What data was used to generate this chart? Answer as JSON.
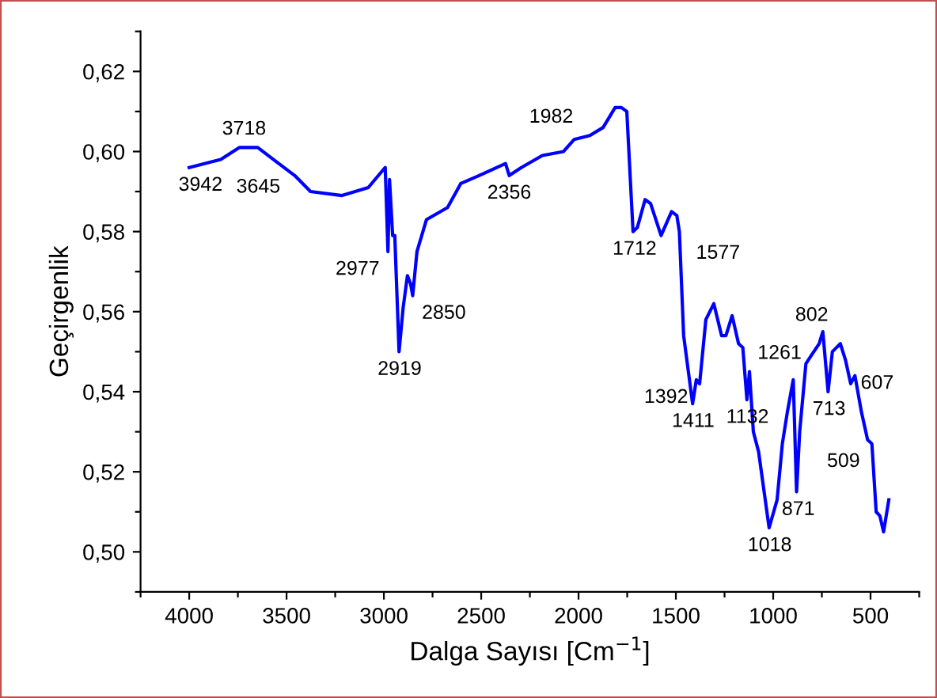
{
  "chart_data": {
    "type": "line",
    "xlabel": "Dalga Sayısı [Cm$^{−1}$]",
    "ylabel": "Geçirgenlik",
    "xlim": [
      4250,
      250
    ],
    "ylim": [
      0.49,
      0.63
    ],
    "xticks": [
      {
        "value": 4250,
        "label": null
      },
      4000,
      {
        "value": 3750,
        "label": null
      },
      3500,
      {
        "value": 3250,
        "label": null
      },
      3000,
      {
        "value": 2750,
        "label": null
      },
      2500,
      {
        "value": 2250,
        "label": null
      },
      2000,
      {
        "value": 1750,
        "label": null
      },
      1500,
      {
        "value": 1250,
        "label": null
      },
      1000,
      {
        "value": 750,
        "label": null
      },
      500,
      {
        "value": 250,
        "label": null
      }
    ],
    "yticks": [
      {
        "value": 0.49,
        "label": null
      },
      {
        "value": 0.5,
        "label": "0,50"
      },
      {
        "value": 0.51,
        "label": null
      },
      {
        "value": 0.52,
        "label": "0,52"
      },
      {
        "value": 0.53,
        "label": null
      },
      {
        "value": 0.54,
        "label": "0,54"
      },
      {
        "value": 0.55,
        "label": null
      },
      {
        "value": 0.56,
        "label": "0,56"
      },
      {
        "value": 0.57,
        "label": null
      },
      {
        "value": 0.58,
        "label": "0,58"
      },
      {
        "value": 0.59,
        "label": null
      },
      {
        "value": 0.6,
        "label": "0,60"
      },
      {
        "value": 0.61,
        "label": null
      },
      {
        "value": 0.62,
        "label": "0,62"
      },
      {
        "value": 0.63,
        "label": null
      }
    ],
    "grid": false,
    "marker": "none",
    "line_style": "solid",
    "series": [
      {
        "color": "#0000ff",
        "x": [
          4000,
          3838,
          3743,
          3648,
          3567,
          3458,
          3377,
          3215,
          3080,
          3011,
          2993,
          2979,
          2971,
          2955,
          2944,
          2922,
          2901,
          2879,
          2863,
          2852,
          2830,
          2781,
          2673,
          2605,
          2511,
          2375,
          2356,
          2294,
          2186,
          2077,
          2023,
          1942,
          1874,
          1812,
          1780,
          1752,
          1720,
          1698,
          1658,
          1630,
          1576,
          1522,
          1495,
          1482,
          1460,
          1414,
          1395,
          1378,
          1346,
          1305,
          1265,
          1243,
          1211,
          1178,
          1156,
          1135,
          1122,
          1102,
          1075,
          1021,
          980,
          953,
          927,
          897,
          880,
          864,
          832,
          805,
          764,
          745,
          718,
          696,
          655,
          629,
          602,
          580,
          547,
          515,
          493,
          471,
          452,
          433,
          406
        ],
        "values": [
          0.596,
          0.598,
          0.601,
          0.601,
          0.598,
          0.594,
          0.59,
          0.589,
          0.591,
          0.595,
          0.596,
          0.575,
          0.593,
          0.579,
          0.579,
          0.55,
          0.561,
          0.569,
          0.567,
          0.564,
          0.575,
          0.583,
          0.586,
          0.592,
          0.594,
          0.597,
          0.594,
          0.596,
          0.599,
          0.6,
          0.603,
          0.604,
          0.606,
          0.611,
          0.611,
          0.61,
          0.58,
          0.581,
          0.588,
          0.587,
          0.579,
          0.585,
          0.584,
          0.58,
          0.554,
          0.537,
          0.543,
          0.542,
          0.558,
          0.562,
          0.554,
          0.554,
          0.559,
          0.552,
          0.551,
          0.538,
          0.545,
          0.53,
          0.525,
          0.506,
          0.513,
          0.527,
          0.535,
          0.543,
          0.515,
          0.53,
          0.547,
          0.549,
          0.552,
          0.555,
          0.54,
          0.55,
          0.552,
          0.548,
          0.542,
          0.544,
          0.535,
          0.528,
          0.527,
          0.51,
          0.509,
          0.505,
          0.513
        ]
      }
    ],
    "annotations": [
      {
        "text": "3942",
        "x": 3942,
        "y": 0.596
      },
      {
        "text": "3718",
        "x": 3718,
        "y": 0.601
      },
      {
        "text": "3645",
        "x": 3645,
        "y": 0.601
      },
      {
        "text": "2977",
        "x": 2977,
        "y": 0.575
      },
      {
        "text": "2919",
        "x": 2919,
        "y": 0.55
      },
      {
        "text": "2850",
        "x": 2850,
        "y": 0.564
      },
      {
        "text": "2356",
        "x": 2356,
        "y": 0.594
      },
      {
        "text": "1982",
        "x": 1982,
        "y": 0.604
      },
      {
        "text": "1712",
        "x": 1712,
        "y": 0.58
      },
      {
        "text": "1577",
        "x": 1577,
        "y": 0.579
      },
      {
        "text": "1411",
        "x": 1411,
        "y": 0.537
      },
      {
        "text": "1392",
        "x": 1392,
        "y": 0.543
      },
      {
        "text": "1261",
        "x": 1261,
        "y": 0.554
      },
      {
        "text": "1132",
        "x": 1132,
        "y": 0.538
      },
      {
        "text": "1018",
        "x": 1018,
        "y": 0.506
      },
      {
        "text": "871",
        "x": 871,
        "y": 0.515
      },
      {
        "text": "802",
        "x": 802,
        "y": 0.549
      },
      {
        "text": "713",
        "x": 713,
        "y": 0.54
      },
      {
        "text": "607",
        "x": 607,
        "y": 0.542
      },
      {
        "text": "509",
        "x": 509,
        "y": 0.527
      }
    ]
  }
}
